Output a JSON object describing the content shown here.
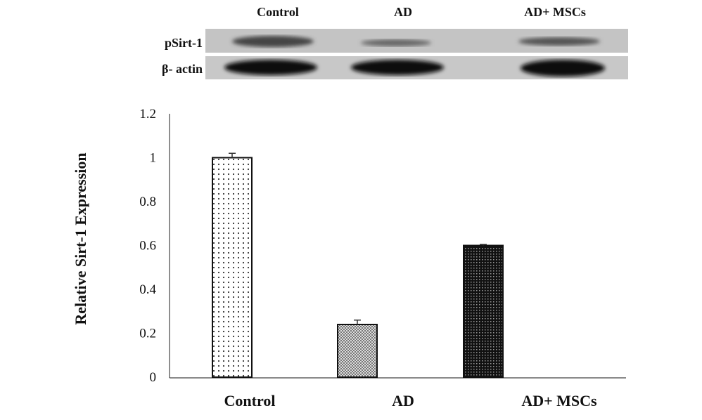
{
  "blot": {
    "lane_labels": [
      "Control",
      "AD",
      "AD+ MSCs"
    ],
    "row_labels": [
      "pSirt-1",
      "β- actin"
    ]
  },
  "chart_data": {
    "type": "bar",
    "title": "",
    "xlabel": "",
    "ylabel": "Relative Sirt-1 Expression",
    "categories": [
      "Control",
      "AD",
      "AD+ MSCs"
    ],
    "values": [
      1.0,
      0.24,
      0.6
    ],
    "errors": [
      0.02,
      0.02,
      0.005
    ],
    "ylim": [
      0,
      1.2
    ],
    "yticks": [
      "0",
      "0.2",
      "0.4",
      "0.6",
      "0.8",
      "1",
      "1.2"
    ],
    "grid": false,
    "patterns": [
      "sparse-dots",
      "grey-checker",
      "dark-checker"
    ]
  }
}
